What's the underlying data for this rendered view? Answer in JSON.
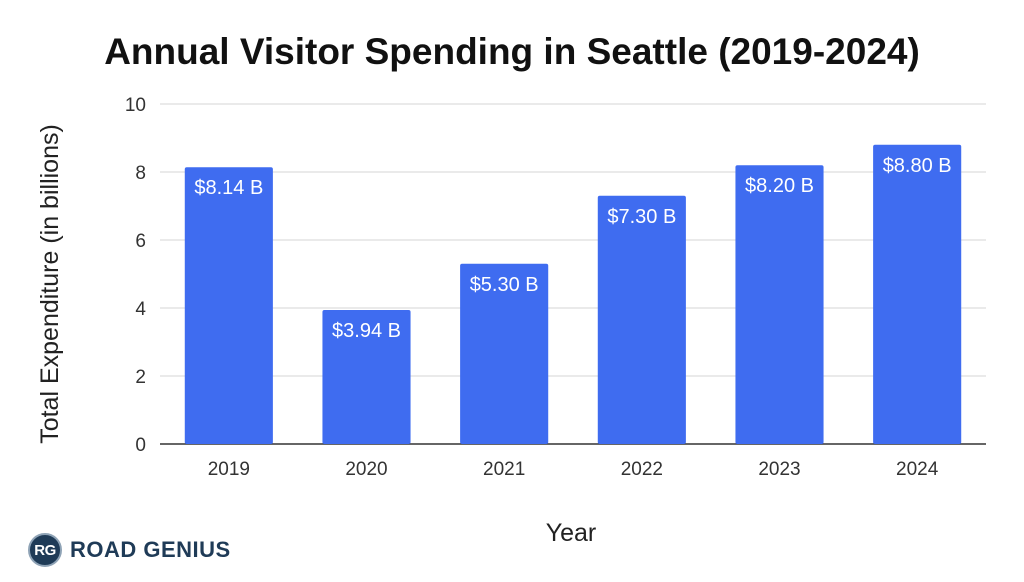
{
  "chart_data": {
    "type": "bar",
    "title": "Annual Visitor Spending in Seattle (2019-2024)",
    "xlabel": "Year",
    "ylabel": "Total Expenditure (in billions)",
    "categories": [
      "2019",
      "2020",
      "2021",
      "2022",
      "2023",
      "2024"
    ],
    "values": [
      8.14,
      3.94,
      5.3,
      7.3,
      8.2,
      8.8
    ],
    "data_labels": [
      "$8.14 B",
      "$3.94 B",
      "$5.30 B",
      "$7.30 B",
      "$8.20 B",
      "$8.80 B"
    ],
    "ylim": [
      0,
      10
    ],
    "yticks": [
      "0",
      "2",
      "4",
      "6",
      "8",
      "10"
    ],
    "grid": true,
    "legend": "none",
    "bar_color": "#3f6cf0"
  },
  "brand": {
    "badge_text": "RG",
    "name": "ROAD GENIUS"
  }
}
